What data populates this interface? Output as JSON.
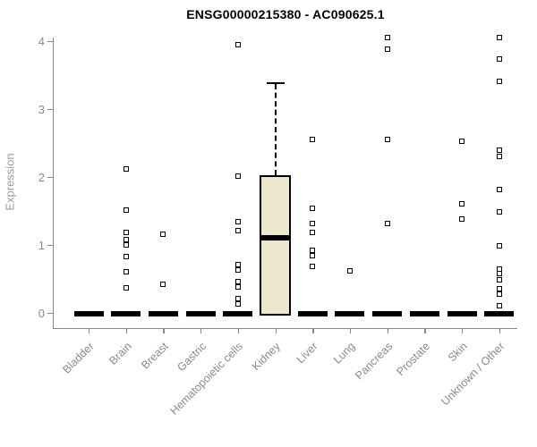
{
  "page": {
    "background": "#ffffff"
  },
  "chart_data": {
    "type": "box",
    "title": "ENSG00000215380 - AC090625.1",
    "ylabel": "Expression",
    "xlabel": "",
    "yticks": [
      "0",
      "1",
      "2",
      "3",
      "4"
    ],
    "ylim": [
      0,
      4.1
    ],
    "grid": false,
    "legend": "none",
    "colors": {
      "box_fill": "#EDE8CD",
      "box_border": "#000000",
      "median": "#000000",
      "axis": "#878787",
      "tick_text": "#8a8a8a",
      "ylabel_text": "#9a9a9a",
      "title_text": "#000000",
      "outlier_border": "#000000",
      "outlier_fill": "#ffffff"
    },
    "categories": [
      "Bladder",
      "Brain",
      "Breast",
      "Gastric",
      "Hematopoietic cells",
      "Kidney",
      "Liver",
      "Lung",
      "Pancreas",
      "Prostate",
      "Skin",
      "Unknown / Other"
    ],
    "series": [
      {
        "category": "Bladder",
        "median": 0,
        "q1": 0,
        "q3": 0,
        "outliers": []
      },
      {
        "category": "Brain",
        "median": 0,
        "q1": 0,
        "q3": 0,
        "outliers": [
          2.12,
          1.51,
          1.18,
          1.08,
          1.0,
          0.83,
          0.61,
          0.37
        ]
      },
      {
        "category": "Breast",
        "median": 0,
        "q1": 0,
        "q3": 0,
        "outliers": [
          1.16,
          0.42
        ]
      },
      {
        "category": "Gastric",
        "median": 0,
        "q1": 0,
        "q3": 0,
        "outliers": []
      },
      {
        "category": "Hematopoietic cells",
        "median": 0,
        "q1": 0,
        "q3": 0,
        "outliers": [
          3.95,
          2.01,
          1.34,
          1.21,
          0.71,
          0.63,
          0.46,
          0.38,
          0.21,
          0.13
        ]
      },
      {
        "category": "Kidney",
        "median": 1.1,
        "q1": 0,
        "q3": 2.03,
        "whisker_high": 3.4,
        "outliers": []
      },
      {
        "category": "Liver",
        "median": 0,
        "q1": 0,
        "q3": 0,
        "outliers": [
          2.55,
          1.54,
          1.32,
          1.18,
          0.92,
          0.84,
          0.68
        ]
      },
      {
        "category": "Lung",
        "median": 0,
        "q1": 0,
        "q3": 0,
        "outliers": [
          0.62
        ]
      },
      {
        "category": "Pancreas",
        "median": 0,
        "q1": 0,
        "q3": 0,
        "outliers": [
          4.05,
          3.88,
          2.55,
          1.32
        ]
      },
      {
        "category": "Prostate",
        "median": 0,
        "q1": 0,
        "q3": 0,
        "outliers": []
      },
      {
        "category": "Skin",
        "median": 0,
        "q1": 0,
        "q3": 0,
        "outliers": [
          2.53,
          1.6,
          1.38
        ]
      },
      {
        "category": "Unknown / Other",
        "median": 0,
        "q1": 0,
        "q3": 0,
        "outliers": [
          4.05,
          3.74,
          3.41,
          2.39,
          2.3,
          1.82,
          1.49,
          0.99,
          0.64,
          0.58,
          0.49,
          0.36,
          0.28,
          0.11
        ]
      }
    ]
  }
}
